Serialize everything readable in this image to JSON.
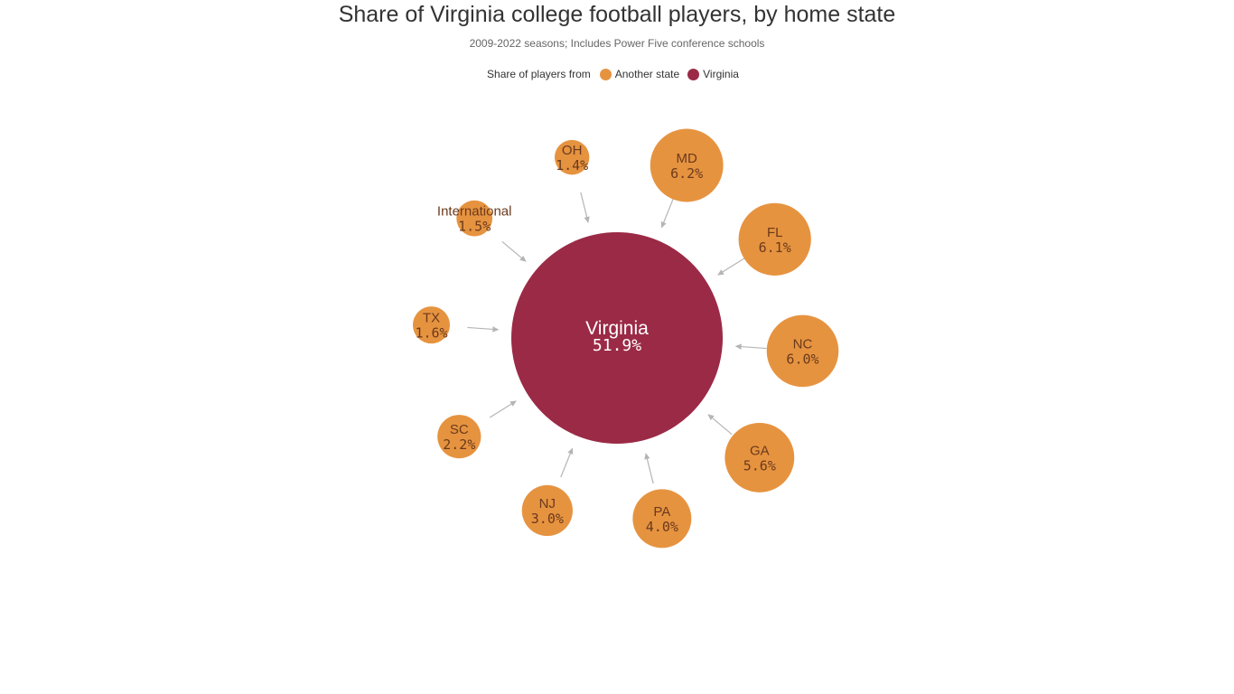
{
  "chart_data": {
    "type": "bubble",
    "title": "Share of Virginia college football players, by home state",
    "subtitle": "2009-2022 seasons; Includes Power Five conference schools",
    "legend": {
      "title": "Share of players from",
      "entries": [
        {
          "label": "Another state",
          "color": "#e69340"
        },
        {
          "label": "Virginia",
          "color": "#9b2a46"
        }
      ]
    },
    "center": {
      "name": "Virginia",
      "value": 51.9,
      "label": "51.9%"
    },
    "points": [
      {
        "name": "OH",
        "value": 1.4,
        "label": "1.4%"
      },
      {
        "name": "MD",
        "value": 6.2,
        "label": "6.2%"
      },
      {
        "name": "FL",
        "value": 6.1,
        "label": "6.1%"
      },
      {
        "name": "NC",
        "value": 6.0,
        "label": "6.0%"
      },
      {
        "name": "GA",
        "value": 5.6,
        "label": "5.6%"
      },
      {
        "name": "PA",
        "value": 4.0,
        "label": "4.0%"
      },
      {
        "name": "NJ",
        "value": 3.0,
        "label": "3.0%"
      },
      {
        "name": "SC",
        "value": 2.2,
        "label": "2.2%"
      },
      {
        "name": "TX",
        "value": 1.6,
        "label": "1.6%"
      },
      {
        "name": "International",
        "value": 1.5,
        "label": "1.5%"
      }
    ],
    "colors": {
      "other": "#e69340",
      "virginia": "#9b2a46",
      "other_text": "#6b3a1b",
      "virginia_text": "#ffffff",
      "arrow": "#b5b5b5"
    }
  }
}
